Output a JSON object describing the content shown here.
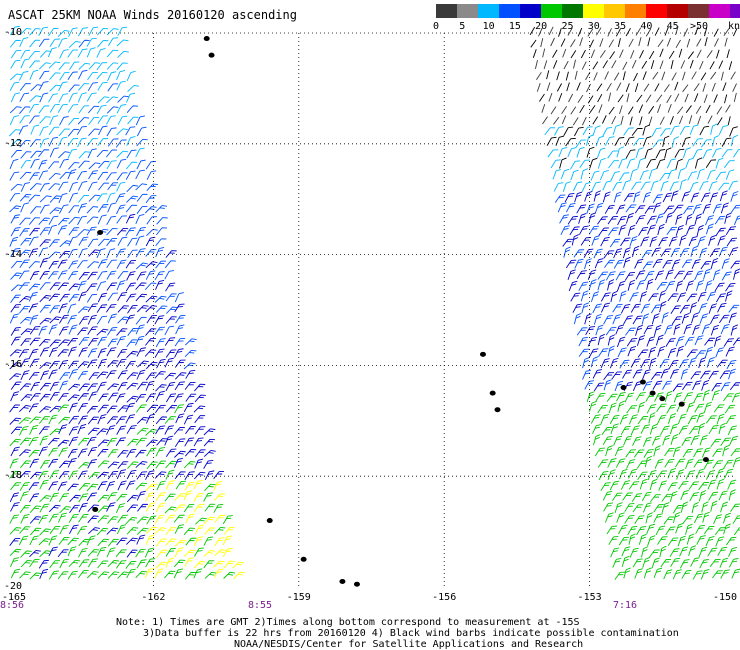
{
  "title": "ASCAT 25KM NOAA Winds 20160120 ascending",
  "legend": {
    "colors": [
      "#3a3a3a",
      "#8a8a8a",
      "#00b8ff",
      "#0050ff",
      "#0000c8",
      "#00c800",
      "#007800",
      "#ffff00",
      "#ffc800",
      "#ff8000",
      "#ff0000",
      "#b40000",
      "#7a3030",
      "#c800c8",
      "#7800c8",
      "#3c00a0"
    ],
    "ticks": [
      "0",
      "5",
      "10",
      "15",
      "20",
      "25",
      "30",
      "35",
      "40",
      "45",
      ">50"
    ],
    "units": "knots"
  },
  "axes": {
    "lat_labels": [
      "-10",
      "-12",
      "-14",
      "-16",
      "-18",
      "-20"
    ],
    "lon_labels": [
      "-165",
      "-162",
      "-159",
      "-156",
      "-153",
      "-150"
    ]
  },
  "times": [
    "8:56",
    "8:55",
    "7:16"
  ],
  "notes": [
    "Note: 1) Times are GMT 2)Times along bottom correspond to measurement at -15S",
    "3)Data buffer is 22 hrs from 20160120 4) Black wind barbs indicate possible contamination",
    "NOAA/NESDIS/Center for Satellite Applications and Research"
  ],
  "chart_data": {
    "type": "map",
    "title": "ASCAT 25KM NOAA Winds 20160120 ascending",
    "lat_range": [
      -20,
      -10
    ],
    "lon_range": [
      -165,
      -150
    ],
    "grid": true,
    "legend_units": "knots",
    "legend_placement": "top-right",
    "speed_classes_knots": [
      0,
      5,
      10,
      15,
      20,
      25,
      30,
      35,
      40,
      45,
      50
    ],
    "swaths": [
      {
        "lon_west_top": -165,
        "lon_east_top": -162.7,
        "lon_west_bottom": -165,
        "lon_east_bottom": -160.2,
        "time": "8:56"
      },
      {
        "lon_west_top": -154.3,
        "lon_east_top": -150,
        "lon_west_bottom": -152.5,
        "lon_east_bottom": -150,
        "time": "7:16"
      }
    ],
    "islands": [
      {
        "lon": -160.9,
        "lat": -10.1
      },
      {
        "lon": -160.8,
        "lat": -10.4
      },
      {
        "lon": -163.1,
        "lat": -13.6
      },
      {
        "lon": -163.2,
        "lat": -18.6
      },
      {
        "lon": -159.6,
        "lat": -18.8
      },
      {
        "lon": -158.9,
        "lat": -19.5
      },
      {
        "lon": -157.8,
        "lat": -19.95
      },
      {
        "lon": -158.1,
        "lat": -19.9
      },
      {
        "lon": -155.2,
        "lat": -15.8
      },
      {
        "lon": -155.0,
        "lat": -16.5
      },
      {
        "lon": -154.9,
        "lat": -16.8
      },
      {
        "lon": -152.3,
        "lat": -16.4
      },
      {
        "lon": -151.9,
        "lat": -16.3
      },
      {
        "lon": -151.5,
        "lat": -16.6
      },
      {
        "lon": -151.7,
        "lat": -16.5
      },
      {
        "lon": -151.1,
        "lat": -16.7
      },
      {
        "lon": -150.6,
        "lat": -17.7
      }
    ]
  }
}
